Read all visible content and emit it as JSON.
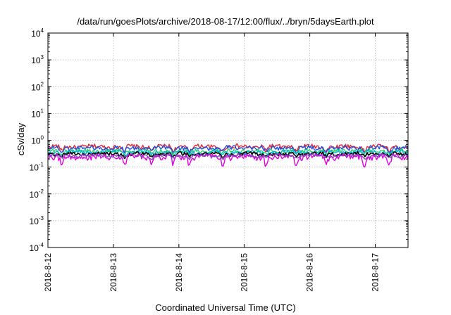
{
  "chart_data": {
    "type": "line",
    "title": "/data/run/goesPlots/archive/2018-08-17/12:00/flux/../bryn/5daysEarth.plot",
    "xlabel": "Coordinated Universal Time (UTC)",
    "ylabel": "cSv/day",
    "yscale": "log",
    "grid": true,
    "legend": "none",
    "xlim": [
      "2018-08-12T00:00",
      "2018-08-17T12:00"
    ],
    "ylim": [
      0.0001,
      10000
    ],
    "xticks": [
      "2018-8-12",
      "2018-8-13",
      "2018-8-14",
      "2018-8-15",
      "2018-8-16",
      "2018-8-17"
    ],
    "yticks": [
      {
        "base": "10",
        "exp": "-4"
      },
      {
        "base": "10",
        "exp": "-3"
      },
      {
        "base": "10",
        "exp": "-2"
      },
      {
        "base": "10",
        "exp": "-1"
      },
      {
        "base": "10",
        "exp": "0"
      },
      {
        "base": "10",
        "exp": "1"
      },
      {
        "base": "10",
        "exp": "2"
      },
      {
        "base": "10",
        "exp": "3"
      },
      {
        "base": "10",
        "exp": "4"
      }
    ],
    "series": [
      {
        "color": "#e8262e",
        "level": 0.58,
        "amp": 0.09,
        "dip": 0.35
      },
      {
        "color": "#1f4fe0",
        "level": 0.52,
        "amp": 0.08,
        "dip": 0.33
      },
      {
        "color": "#2ad17a",
        "level": 0.4,
        "amp": 0.06,
        "dip": 0.25
      },
      {
        "color": "#00b7c7",
        "level": 0.36,
        "amp": 0.05,
        "dip": 0.25
      },
      {
        "color": "#000000",
        "level": 0.31,
        "amp": 0.04,
        "dip": 0.2
      },
      {
        "color": "#e000e0",
        "level": 0.24,
        "amp": 0.05,
        "dip": 0.55
      },
      {
        "color": "#8a3fc0",
        "level": 0.27,
        "amp": 0.03,
        "dip": 0.2
      }
    ],
    "dip_times": [
      "2018-08-12T05:00",
      "2018-08-13T04:00",
      "2018-08-13T14:00",
      "2018-08-13T22:00",
      "2018-08-14T04:00",
      "2018-08-14T16:00",
      "2018-08-15T08:00",
      "2018-08-15T19:00",
      "2018-08-16T06:00",
      "2018-08-16T20:00",
      "2018-08-17T05:00",
      "2018-08-17T13:00"
    ]
  }
}
